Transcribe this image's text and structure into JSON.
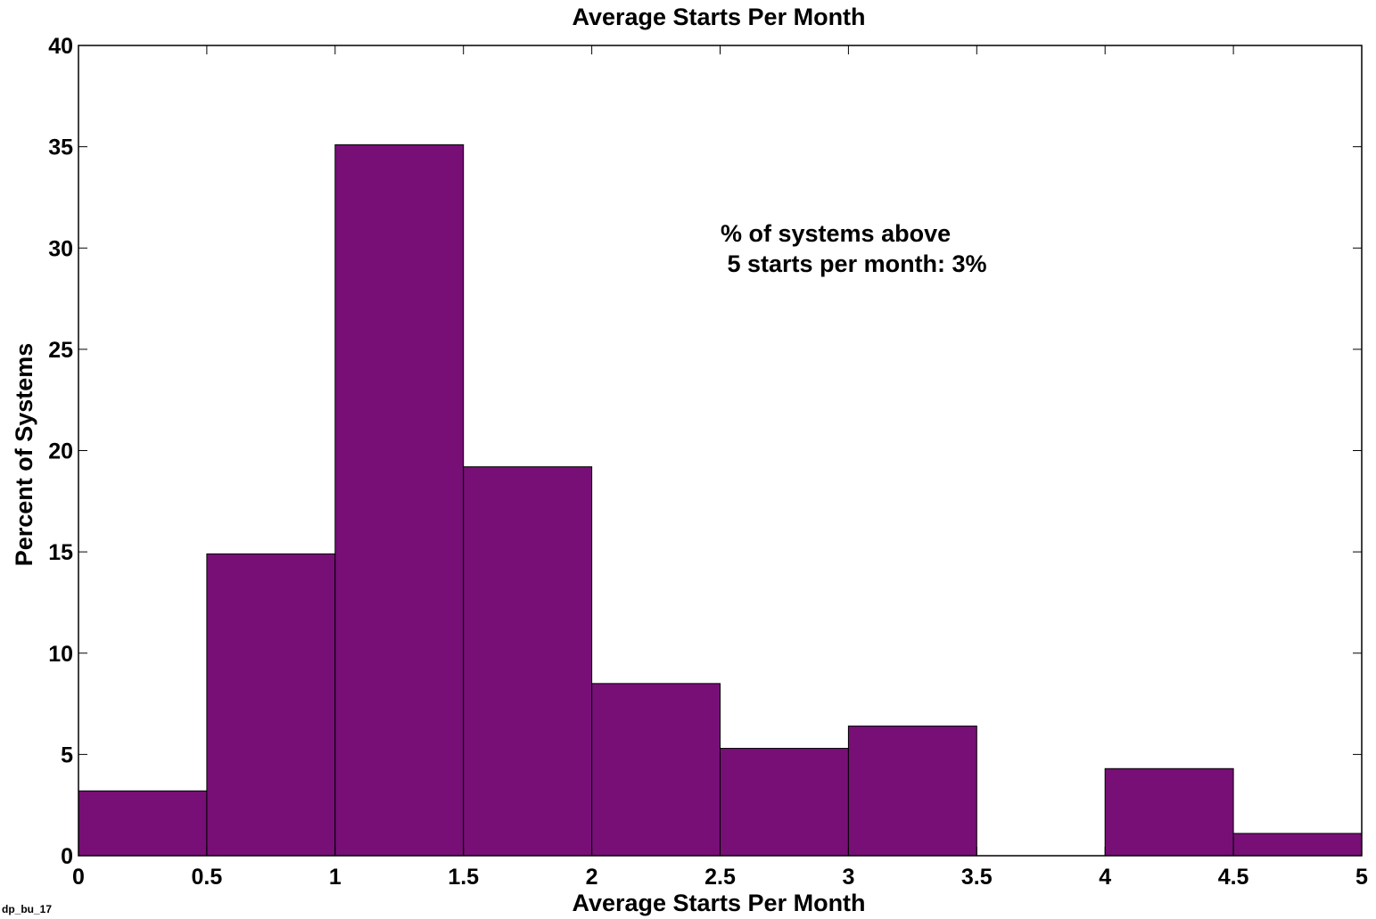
{
  "chart_data": {
    "type": "bar",
    "title": "Average Starts Per Month",
    "xlabel": "Average Starts Per Month",
    "ylabel": "Percent of Systems",
    "bin_edges": [
      0,
      0.5,
      1,
      1.5,
      2,
      2.5,
      3,
      3.5,
      4,
      4.5,
      5
    ],
    "values": [
      3.2,
      14.9,
      35.1,
      19.2,
      8.5,
      5.3,
      6.4,
      0,
      4.3,
      1.1
    ],
    "xlim": [
      0,
      5
    ],
    "ylim": [
      0,
      40
    ],
    "xticks": [
      0,
      0.5,
      1,
      1.5,
      2,
      2.5,
      3,
      3.5,
      4,
      4.5,
      5
    ],
    "xtick_labels": [
      "0",
      "0.5",
      "1",
      "1.5",
      "2",
      "2.5",
      "3",
      "3.5",
      "4",
      "4.5",
      "5"
    ],
    "yticks": [
      0,
      5,
      10,
      15,
      20,
      25,
      30,
      35,
      40
    ],
    "ytick_labels": [
      "0",
      "5",
      "10",
      "15",
      "20",
      "25",
      "30",
      "35",
      "40"
    ],
    "bar_color": "#770f77",
    "grid": false,
    "annotation": [
      "% of systems above",
      " 5 starts per month: 3%"
    ]
  },
  "footer_id": "dp_bu_17"
}
